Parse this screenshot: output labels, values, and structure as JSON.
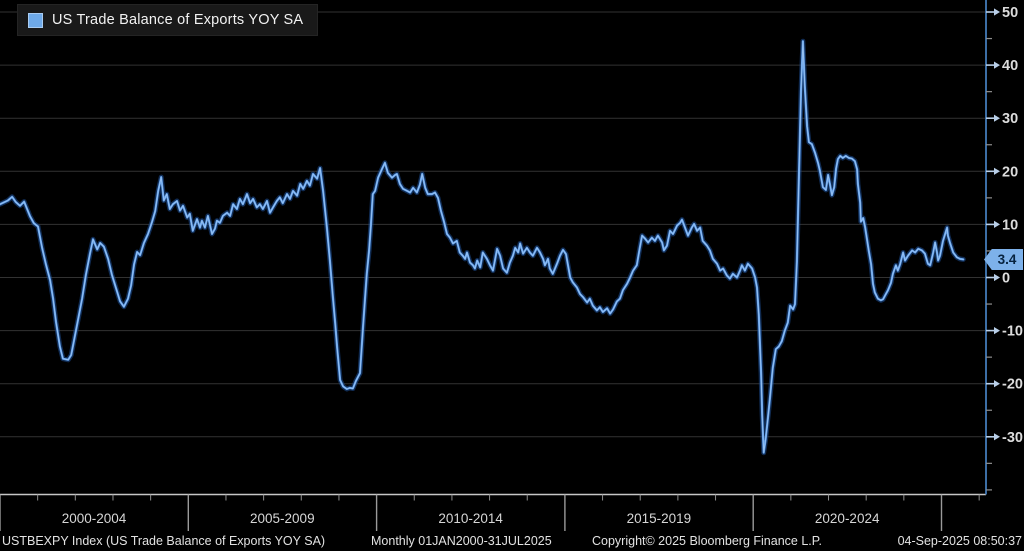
{
  "legend": {
    "label": "US Trade Balance of Exports YOY SA"
  },
  "last_value": {
    "label": "3.4"
  },
  "footer": {
    "index_label": "USTBEXPY Index (US Trade Balance of Exports YOY SA)",
    "periodicity": "Monthly 01JAN2000-31JUL2025",
    "copyright": "Copyright© 2025 Bloomberg Finance L.P.",
    "timestamp": "04-Sep-2025 08:50:37"
  },
  "colors": {
    "background": "#000000",
    "line": "#5d9ce8",
    "line_glow": "#1d4e96",
    "line_core": "#a9cdf5",
    "grid": "#323232",
    "axis_y": "#3c6ea5",
    "axis_x": "#c6c6c6",
    "tick_minor": "#8f8f8f",
    "tick_arrow": "#b9cfe8",
    "tick_text": "#dcdcdc",
    "tag_bg": "#7db1ea",
    "tag_text": "#07233f"
  },
  "chart_data": {
    "type": "line",
    "title": "US Trade Balance of Exports YOY SA",
    "series_name": "USTBEXPY Index",
    "legend": [
      "US Trade Balance of Exports YOY SA"
    ],
    "x_axis": {
      "labels": [
        "2000-2004",
        "2005-2009",
        "2010-2014",
        "2015-2019",
        "2020-2024"
      ],
      "range": [
        2000,
        2026.2
      ],
      "grid": false
    },
    "y_axis": {
      "ticks": [
        50,
        40,
        30,
        20,
        10,
        0,
        -10,
        -20,
        -30
      ],
      "minor_ticks": [
        45,
        35,
        25,
        15,
        5,
        -5,
        -15,
        -25,
        -35,
        -40
      ],
      "range": [
        -40.9,
        52.3
      ],
      "grid": true,
      "side": "right"
    },
    "last_value": 3.4,
    "points": [
      [
        2000.0,
        13.8
      ],
      [
        2000.21,
        14.5
      ],
      [
        2000.32,
        15.2
      ],
      [
        2000.42,
        14.2
      ],
      [
        2000.53,
        13.5
      ],
      [
        2000.64,
        14.3
      ],
      [
        2000.8,
        11.5
      ],
      [
        2000.9,
        10.2
      ],
      [
        2001.01,
        9.6
      ],
      [
        2001.12,
        5.5
      ],
      [
        2001.22,
        2.5
      ],
      [
        2001.33,
        -0.5
      ],
      [
        2001.41,
        -4.0
      ],
      [
        2001.49,
        -8.5
      ],
      [
        2001.59,
        -13.0
      ],
      [
        2001.67,
        -15.3
      ],
      [
        2001.81,
        -15.5
      ],
      [
        2001.89,
        -14.6
      ],
      [
        2001.99,
        -11.0
      ],
      [
        2002.07,
        -8.0
      ],
      [
        2002.18,
        -4.0
      ],
      [
        2002.28,
        0.5
      ],
      [
        2002.39,
        4.5
      ],
      [
        2002.47,
        7.2
      ],
      [
        2002.58,
        5.3
      ],
      [
        2002.66,
        6.5
      ],
      [
        2002.76,
        5.8
      ],
      [
        2002.87,
        3.5
      ],
      [
        2002.97,
        0.5
      ],
      [
        2003.08,
        -2.0
      ],
      [
        2003.19,
        -4.5
      ],
      [
        2003.29,
        -5.5
      ],
      [
        2003.4,
        -4.0
      ],
      [
        2003.48,
        -1.5
      ],
      [
        2003.56,
        2.5
      ],
      [
        2003.64,
        4.8
      ],
      [
        2003.72,
        4.2
      ],
      [
        2003.82,
        6.5
      ],
      [
        2003.93,
        8.2
      ],
      [
        2004.04,
        10.5
      ],
      [
        2004.12,
        12.5
      ],
      [
        2004.2,
        16.3
      ],
      [
        2004.28,
        18.9
      ],
      [
        2004.35,
        14.5
      ],
      [
        2004.43,
        15.7
      ],
      [
        2004.51,
        12.9
      ],
      [
        2004.59,
        13.8
      ],
      [
        2004.7,
        14.4
      ],
      [
        2004.78,
        12.6
      ],
      [
        2004.86,
        13.5
      ],
      [
        2004.97,
        11.3
      ],
      [
        2005.04,
        12.0
      ],
      [
        2005.12,
        8.8
      ],
      [
        2005.23,
        11.0
      ],
      [
        2005.31,
        9.4
      ],
      [
        2005.36,
        10.7
      ],
      [
        2005.44,
        9.4
      ],
      [
        2005.52,
        11.6
      ],
      [
        2005.63,
        8.2
      ],
      [
        2005.71,
        9.2
      ],
      [
        2005.76,
        10.7
      ],
      [
        2005.84,
        10.3
      ],
      [
        2005.92,
        11.6
      ],
      [
        2006.03,
        12.2
      ],
      [
        2006.11,
        11.6
      ],
      [
        2006.19,
        13.8
      ],
      [
        2006.29,
        12.9
      ],
      [
        2006.37,
        14.8
      ],
      [
        2006.45,
        13.8
      ],
      [
        2006.56,
        15.7
      ],
      [
        2006.64,
        14.0
      ],
      [
        2006.72,
        14.8
      ],
      [
        2006.82,
        13.2
      ],
      [
        2006.9,
        13.8
      ],
      [
        2006.98,
        12.9
      ],
      [
        2007.09,
        14.4
      ],
      [
        2007.17,
        12.2
      ],
      [
        2007.25,
        13.2
      ],
      [
        2007.35,
        14.4
      ],
      [
        2007.43,
        15.1
      ],
      [
        2007.51,
        14.0
      ],
      [
        2007.62,
        15.7
      ],
      [
        2007.7,
        14.8
      ],
      [
        2007.78,
        16.3
      ],
      [
        2007.89,
        15.4
      ],
      [
        2007.97,
        17.6
      ],
      [
        2008.05,
        16.7
      ],
      [
        2008.15,
        18.2
      ],
      [
        2008.23,
        17.3
      ],
      [
        2008.31,
        19.5
      ],
      [
        2008.42,
        18.6
      ],
      [
        2008.5,
        20.6
      ],
      [
        2008.58,
        16.3
      ],
      [
        2008.68,
        9.4
      ],
      [
        2008.76,
        3.2
      ],
      [
        2008.84,
        -3.7
      ],
      [
        2008.9,
        -8.6
      ],
      [
        2008.95,
        -13.1
      ],
      [
        2009.03,
        -19.3
      ],
      [
        2009.11,
        -20.5
      ],
      [
        2009.21,
        -21.0
      ],
      [
        2009.29,
        -20.8
      ],
      [
        2009.37,
        -20.9
      ],
      [
        2009.45,
        -19.5
      ],
      [
        2009.56,
        -18.0
      ],
      [
        2009.64,
        -9.4
      ],
      [
        2009.69,
        -4.3
      ],
      [
        2009.74,
        0.7
      ],
      [
        2009.8,
        5.1
      ],
      [
        2009.85,
        10.1
      ],
      [
        2009.9,
        15.7
      ],
      [
        2009.96,
        16.3
      ],
      [
        2010.04,
        18.8
      ],
      [
        2010.14,
        20.4
      ],
      [
        2010.22,
        21.6
      ],
      [
        2010.3,
        19.7
      ],
      [
        2010.41,
        18.8
      ],
      [
        2010.49,
        19.3
      ],
      [
        2010.54,
        19.5
      ],
      [
        2010.62,
        17.6
      ],
      [
        2010.7,
        16.7
      ],
      [
        2010.81,
        16.3
      ],
      [
        2010.89,
        16.0
      ],
      [
        2010.97,
        16.9
      ],
      [
        2011.07,
        16.0
      ],
      [
        2011.15,
        17.5
      ],
      [
        2011.21,
        19.5
      ],
      [
        2011.29,
        16.9
      ],
      [
        2011.36,
        15.7
      ],
      [
        2011.47,
        15.7
      ],
      [
        2011.55,
        16.0
      ],
      [
        2011.63,
        15.0
      ],
      [
        2011.71,
        12.5
      ],
      [
        2011.79,
        10.5
      ],
      [
        2011.87,
        8.2
      ],
      [
        2011.95,
        7.5
      ],
      [
        2012.03,
        6.4
      ],
      [
        2012.13,
        6.9
      ],
      [
        2012.21,
        4.7
      ],
      [
        2012.29,
        4.1
      ],
      [
        2012.35,
        3.5
      ],
      [
        2012.4,
        4.7
      ],
      [
        2012.48,
        2.8
      ],
      [
        2012.56,
        2.3
      ],
      [
        2012.61,
        1.7
      ],
      [
        2012.67,
        3.2
      ],
      [
        2012.75,
        1.9
      ],
      [
        2012.82,
        4.7
      ],
      [
        2012.93,
        3.5
      ],
      [
        2013.01,
        2.3
      ],
      [
        2013.09,
        1.3
      ],
      [
        2013.2,
        5.4
      ],
      [
        2013.28,
        4.1
      ],
      [
        2013.36,
        1.7
      ],
      [
        2013.46,
        0.9
      ],
      [
        2013.54,
        2.8
      ],
      [
        2013.62,
        4.1
      ],
      [
        2013.68,
        5.6
      ],
      [
        2013.76,
        4.7
      ],
      [
        2013.81,
        6.4
      ],
      [
        2013.89,
        4.5
      ],
      [
        2013.99,
        5.6
      ],
      [
        2014.07,
        4.7
      ],
      [
        2014.15,
        4.1
      ],
      [
        2014.26,
        5.6
      ],
      [
        2014.34,
        4.7
      ],
      [
        2014.42,
        3.5
      ],
      [
        2014.47,
        2.3
      ],
      [
        2014.55,
        3.5
      ],
      [
        2014.6,
        1.7
      ],
      [
        2014.68,
        0.7
      ],
      [
        2014.79,
        2.6
      ],
      [
        2014.87,
        4.1
      ],
      [
        2014.95,
        5.2
      ],
      [
        2015.03,
        4.4
      ],
      [
        2015.14,
        0.0
      ],
      [
        2015.21,
        -0.9
      ],
      [
        2015.32,
        -1.9
      ],
      [
        2015.4,
        -3.1
      ],
      [
        2015.48,
        -3.7
      ],
      [
        2015.59,
        -4.7
      ],
      [
        2015.66,
        -4.0
      ],
      [
        2015.74,
        -5.3
      ],
      [
        2015.85,
        -6.2
      ],
      [
        2015.93,
        -5.6
      ],
      [
        2016.01,
        -6.5
      ],
      [
        2016.12,
        -5.8
      ],
      [
        2016.2,
        -6.8
      ],
      [
        2016.28,
        -6.0
      ],
      [
        2016.38,
        -4.5
      ],
      [
        2016.46,
        -4.0
      ],
      [
        2016.54,
        -2.4
      ],
      [
        2016.65,
        -1.2
      ],
      [
        2016.73,
        0.0
      ],
      [
        2016.81,
        1.3
      ],
      [
        2016.91,
        2.3
      ],
      [
        2016.99,
        5.6
      ],
      [
        2017.05,
        7.9
      ],
      [
        2017.13,
        7.3
      ],
      [
        2017.21,
        6.6
      ],
      [
        2017.31,
        7.5
      ],
      [
        2017.39,
        6.9
      ],
      [
        2017.47,
        7.9
      ],
      [
        2017.58,
        6.6
      ],
      [
        2017.63,
        5.1
      ],
      [
        2017.71,
        6.0
      ],
      [
        2017.79,
        8.8
      ],
      [
        2017.87,
        8.2
      ],
      [
        2017.98,
        9.8
      ],
      [
        2018.06,
        10.3
      ],
      [
        2018.11,
        10.9
      ],
      [
        2018.19,
        9.4
      ],
      [
        2018.27,
        7.9
      ],
      [
        2018.37,
        9.4
      ],
      [
        2018.43,
        10.1
      ],
      [
        2018.51,
        8.8
      ],
      [
        2018.59,
        9.4
      ],
      [
        2018.66,
        6.9
      ],
      [
        2018.77,
        6.0
      ],
      [
        2018.85,
        5.1
      ],
      [
        2018.93,
        3.5
      ],
      [
        2019.04,
        2.6
      ],
      [
        2019.12,
        1.3
      ],
      [
        2019.2,
        1.7
      ],
      [
        2019.3,
        0.4
      ],
      [
        2019.38,
        -0.2
      ],
      [
        2019.46,
        0.7
      ],
      [
        2019.57,
        0.0
      ],
      [
        2019.65,
        1.3
      ],
      [
        2019.7,
        2.3
      ],
      [
        2019.78,
        1.3
      ],
      [
        2019.86,
        2.6
      ],
      [
        2019.97,
        1.7
      ],
      [
        2020.05,
        0.0
      ],
      [
        2020.1,
        -1.9
      ],
      [
        2020.15,
        -7.0
      ],
      [
        2020.21,
        -18.0
      ],
      [
        2020.24,
        -26.0
      ],
      [
        2020.28,
        -33.0
      ],
      [
        2020.33,
        -30.5
      ],
      [
        2020.39,
        -26.5
      ],
      [
        2020.44,
        -23.0
      ],
      [
        2020.52,
        -17.0
      ],
      [
        2020.6,
        -13.5
      ],
      [
        2020.68,
        -13.0
      ],
      [
        2020.76,
        -12.0
      ],
      [
        2020.84,
        -10.0
      ],
      [
        2020.92,
        -8.5
      ],
      [
        2020.98,
        -5.3
      ],
      [
        2021.06,
        -6.0
      ],
      [
        2021.11,
        -5.0
      ],
      [
        2021.16,
        3.0
      ],
      [
        2021.21,
        18.0
      ],
      [
        2021.27,
        35.0
      ],
      [
        2021.32,
        44.5
      ],
      [
        2021.37,
        36.0
      ],
      [
        2021.43,
        28.5
      ],
      [
        2021.48,
        25.5
      ],
      [
        2021.56,
        25.1
      ],
      [
        2021.64,
        23.5
      ],
      [
        2021.72,
        21.6
      ],
      [
        2021.77,
        20.1
      ],
      [
        2021.85,
        17.0
      ],
      [
        2021.93,
        16.5
      ],
      [
        2021.99,
        19.3
      ],
      [
        2022.04,
        17.5
      ],
      [
        2022.09,
        15.5
      ],
      [
        2022.15,
        17.0
      ],
      [
        2022.2,
        20.5
      ],
      [
        2022.25,
        22.3
      ],
      [
        2022.31,
        22.9
      ],
      [
        2022.38,
        22.5
      ],
      [
        2022.46,
        22.9
      ],
      [
        2022.54,
        22.5
      ],
      [
        2022.62,
        22.4
      ],
      [
        2022.7,
        21.9
      ],
      [
        2022.76,
        20.4
      ],
      [
        2022.78,
        17.6
      ],
      [
        2022.84,
        14.1
      ],
      [
        2022.86,
        10.5
      ],
      [
        2022.92,
        11.2
      ],
      [
        2022.97,
        9.5
      ],
      [
        2023.02,
        7.3
      ],
      [
        2023.07,
        5.0
      ],
      [
        2023.13,
        2.5
      ],
      [
        2023.18,
        -1.2
      ],
      [
        2023.23,
        -2.8
      ],
      [
        2023.31,
        -4.0
      ],
      [
        2023.39,
        -4.3
      ],
      [
        2023.45,
        -4.1
      ],
      [
        2023.5,
        -3.4
      ],
      [
        2023.58,
        -2.4
      ],
      [
        2023.66,
        -1.0
      ],
      [
        2023.71,
        0.7
      ],
      [
        2023.79,
        2.3
      ],
      [
        2023.84,
        1.3
      ],
      [
        2023.9,
        2.5
      ],
      [
        2023.98,
        4.7
      ],
      [
        2024.03,
        3.2
      ],
      [
        2024.11,
        4.1
      ],
      [
        2024.22,
        5.1
      ],
      [
        2024.3,
        4.7
      ],
      [
        2024.38,
        5.4
      ],
      [
        2024.48,
        5.1
      ],
      [
        2024.56,
        4.5
      ],
      [
        2024.64,
        2.6
      ],
      [
        2024.7,
        2.3
      ],
      [
        2024.78,
        4.7
      ],
      [
        2024.83,
        6.6
      ],
      [
        2024.88,
        4.7
      ],
      [
        2024.91,
        3.2
      ],
      [
        2024.96,
        4.1
      ],
      [
        2025.04,
        6.9
      ],
      [
        2025.15,
        9.4
      ],
      [
        2025.17,
        7.9
      ],
      [
        2025.23,
        6.4
      ],
      [
        2025.31,
        4.7
      ],
      [
        2025.41,
        3.8
      ],
      [
        2025.49,
        3.5
      ],
      [
        2025.58,
        3.4
      ]
    ]
  }
}
